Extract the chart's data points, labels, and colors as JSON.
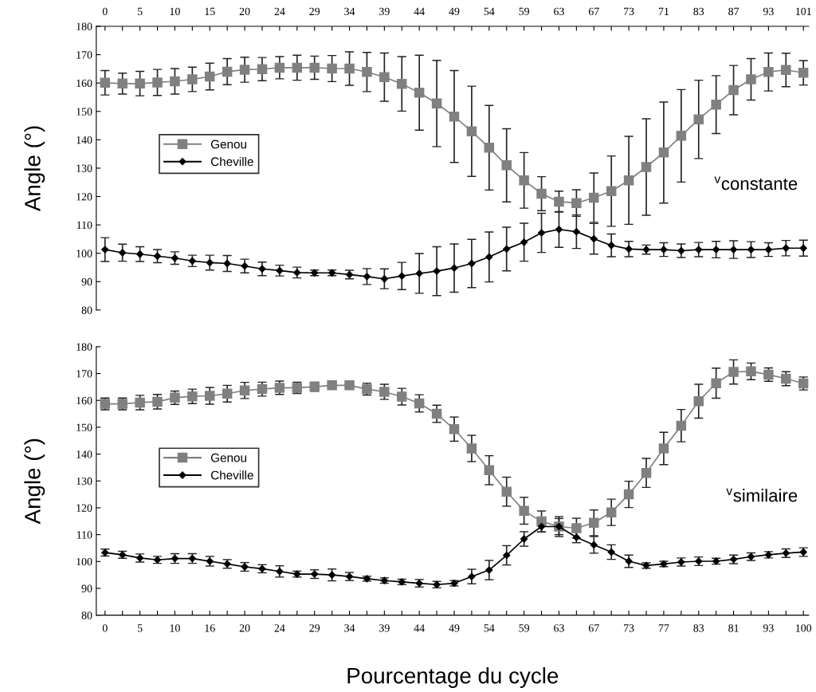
{
  "chart_data": [
    {
      "type": "line",
      "ylabel": "Angle (°)",
      "annotations": [
        "$^{v}$constante"
      ],
      "categories": [
        "0",
        null,
        "5",
        null,
        "10",
        null,
        "15",
        null,
        "20",
        null,
        "24",
        null,
        "29",
        null,
        "34",
        null,
        "39",
        null,
        "44",
        null,
        "49",
        null,
        "54",
        null,
        "59",
        null,
        "63",
        null,
        "67",
        null,
        "73",
        null,
        "71",
        null,
        "83",
        null,
        "87",
        null,
        "93",
        null,
        "101"
      ],
      "ylim": [
        80,
        180
      ],
      "yticks": [
        80,
        90,
        100,
        110,
        120,
        130,
        140,
        150,
        160,
        170,
        180
      ],
      "grid": false,
      "legend": "center left",
      "line_style": "solid",
      "series": [
        {
          "name": "Genou",
          "color": "#808080",
          "marker": "square",
          "values": [
            160.1,
            159.8,
            159.8,
            160.2,
            160.6,
            161.3,
            162.3,
            164.0,
            164.7,
            164.9,
            165.4,
            165.4,
            165.4,
            165.1,
            165.1,
            163.9,
            162.1,
            159.7,
            156.6,
            152.8,
            148.2,
            143.0,
            137.2,
            131.0,
            125.7,
            121.0,
            118.2,
            117.7,
            119.6,
            121.9,
            125.7,
            130.4,
            135.5,
            141.4,
            147.2,
            152.4,
            157.5,
            161.3,
            163.9,
            164.6,
            163.6
          ],
          "errors": [
            4.3,
            3.7,
            4.3,
            4.6,
            4.5,
            4.3,
            4.7,
            4.6,
            4.4,
            4.1,
            3.9,
            4.4,
            4.1,
            4.6,
            5.9,
            6.9,
            8.5,
            9.6,
            13.2,
            15.2,
            16.2,
            15.9,
            14.9,
            12.9,
            9.8,
            6.0,
            3.7,
            4.7,
            8.7,
            12.4,
            15.5,
            17.0,
            17.8,
            16.3,
            13.8,
            10.2,
            8.7,
            7.3,
            6.7,
            5.9,
            4.3
          ]
        },
        {
          "name": "Cheville",
          "color": "#000000",
          "marker": "diamond",
          "values": [
            101.3,
            100.2,
            99.7,
            99.0,
            98.3,
            97.3,
            96.7,
            96.4,
            95.5,
            94.5,
            93.9,
            93.2,
            93.1,
            93.1,
            92.5,
            91.8,
            91.0,
            92.0,
            92.9,
            93.7,
            94.8,
            96.4,
            98.7,
            101.5,
            103.9,
            107.2,
            108.4,
            107.6,
            105.1,
            102.8,
            101.5,
            101.3,
            101.3,
            100.9,
            101.3,
            101.3,
            101.3,
            101.3,
            101.3,
            101.8,
            101.8
          ],
          "errors": [
            4.2,
            3.0,
            2.6,
            2.3,
            2.2,
            2.0,
            2.6,
            2.8,
            2.4,
            2.4,
            1.9,
            1.9,
            1.0,
            1.0,
            1.5,
            2.8,
            3.5,
            4.8,
            7.0,
            8.6,
            8.5,
            8.5,
            8.8,
            7.7,
            6.7,
            6.9,
            6.3,
            5.9,
            5.4,
            4.0,
            2.7,
            1.6,
            2.4,
            2.4,
            2.5,
            2.9,
            3.1,
            2.8,
            2.4,
            2.7,
            2.8
          ]
        }
      ]
    },
    {
      "type": "line",
      "ylabel": "Angle (°)",
      "xlabel": "Pourcentage du cycle",
      "annotations": [
        "$^{v}$similaire"
      ],
      "categories": [
        "0",
        null,
        "5",
        null,
        "10",
        null,
        "16",
        null,
        "20",
        null,
        "24",
        null,
        "29",
        null,
        "34",
        null,
        "39",
        null,
        "44",
        null,
        "49",
        null,
        "54",
        null,
        "59",
        null,
        "63",
        null,
        "67",
        null,
        "73",
        null,
        "77",
        null,
        "83",
        null,
        "81",
        null,
        "93",
        null,
        "100"
      ],
      "ylim": [
        80,
        180
      ],
      "yticks": [
        80,
        90,
        100,
        110,
        120,
        130,
        140,
        150,
        160,
        170,
        180
      ],
      "grid": false,
      "legend": "center left",
      "line_style": "solid",
      "series": [
        {
          "name": "Genou",
          "color": "#808080",
          "marker": "square",
          "values": [
            158.7,
            158.7,
            159.2,
            159.5,
            161.0,
            161.5,
            161.7,
            162.5,
            163.7,
            164.2,
            164.7,
            164.7,
            165.1,
            165.6,
            165.6,
            164.2,
            163.2,
            161.4,
            158.9,
            155.0,
            149.3,
            142.1,
            134.0,
            126.0,
            118.9,
            114.9,
            113.0,
            112.4,
            114.4,
            118.3,
            125.0,
            133.0,
            142.1,
            150.6,
            159.7,
            166.4,
            170.6,
            170.8,
            169.6,
            168.1,
            166.3
          ],
          "errors": [
            2.2,
            2.2,
            2.7,
            2.7,
            2.5,
            2.7,
            3.1,
            3.1,
            3.0,
            2.6,
            2.5,
            2.1,
            1.7,
            1.3,
            1.1,
            2.2,
            2.8,
            3.1,
            3.2,
            3.2,
            4.5,
            4.9,
            5.4,
            5.4,
            5.0,
            3.9,
            3.7,
            3.7,
            4.8,
            4.9,
            4.9,
            5.4,
            6.0,
            6.0,
            6.3,
            5.6,
            4.5,
            3.1,
            2.5,
            2.6,
            2.4
          ]
        },
        {
          "name": "Cheville",
          "color": "#000000",
          "marker": "diamond",
          "values": [
            103.3,
            102.5,
            101.3,
            100.6,
            101.1,
            101.1,
            100.1,
            99.1,
            98.0,
            97.3,
            96.3,
            95.3,
            95.3,
            95.0,
            94.4,
            93.6,
            92.9,
            92.4,
            91.9,
            91.4,
            91.9,
            94.4,
            96.8,
            102.3,
            108.4,
            113.0,
            113.0,
            109.0,
            106.2,
            103.5,
            100.1,
            98.5,
            99.1,
            99.8,
            100.1,
            100.1,
            100.8,
            101.8,
            102.5,
            103.1,
            103.5
          ],
          "errors": [
            1.3,
            1.3,
            1.5,
            1.3,
            1.8,
            1.8,
            1.8,
            1.6,
            1.6,
            1.5,
            2.1,
            1.1,
            1.6,
            2.2,
            1.5,
            0.9,
            1.0,
            1.0,
            1.4,
            1.2,
            1.0,
            2.7,
            3.6,
            3.6,
            2.7,
            2.0,
            3.0,
            2.0,
            3.1,
            2.7,
            2.3,
            1.0,
            1.0,
            1.5,
            1.6,
            1.1,
            1.6,
            1.4,
            1.2,
            1.6,
            1.6
          ]
        }
      ]
    }
  ]
}
